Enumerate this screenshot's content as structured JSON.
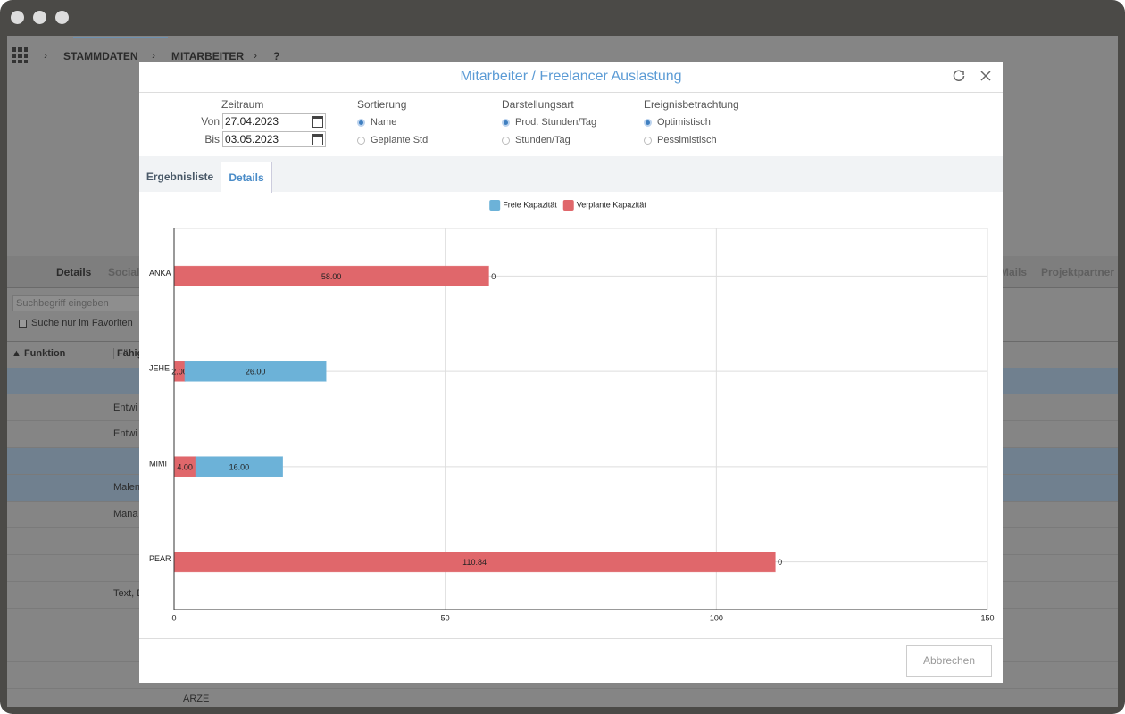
{
  "app": {
    "breadcrumb": [
      "STAMMDATEN",
      "MITARBEITER",
      "?"
    ],
    "tabs": [
      "Details",
      "Social",
      "Mails",
      "Projektpartner"
    ],
    "search_placeholder": "Suchbegriff eingeben",
    "favorites_filter": "Suche nur im Favoriten",
    "columns": [
      "▲ Funktion",
      "Fähigk"
    ],
    "rows": [
      "Entwi",
      "Entwi",
      "Malen",
      "Mana",
      "Text, D"
    ],
    "footer": "ARZE"
  },
  "dialog": {
    "title": "Mitarbeiter / Freelancer Auslastung",
    "zeitraum": {
      "label": "Zeitraum",
      "from_label": "Von",
      "from": "27.04.2023",
      "to_label": "Bis",
      "to": "03.05.2023"
    },
    "radio_groups": [
      {
        "label": "Sortierung",
        "options": [
          "Name",
          "Geplante Std"
        ],
        "selected": 0
      },
      {
        "label": "Darstellungsart",
        "options": [
          "Prod. Stunden/Tag",
          "Stunden/Tag"
        ],
        "selected": 0
      },
      {
        "label": "Ereignisbetrachtung",
        "options": [
          "Optimistisch",
          "Pessimistisch"
        ],
        "selected": 0
      }
    ],
    "tabs": [
      "Ergebnisliste",
      "Details"
    ],
    "active_tab": 1,
    "cancel": "Abbrechen"
  },
  "chart_data": {
    "type": "bar",
    "orientation": "horizontal",
    "stacked": true,
    "categories": [
      "ANKA",
      "JEHE",
      "MIMI",
      "PEAR"
    ],
    "series": [
      {
        "name": "Freie Kapazität",
        "color": "#6cb2d8",
        "values": [
          0,
          26,
          16,
          0
        ],
        "value_labels": [
          "0",
          "26.00",
          "16.00",
          "0"
        ]
      },
      {
        "name": "Verplante Kapazität",
        "color": "#e0676b",
        "values": [
          58,
          2,
          4,
          110.84
        ],
        "value_labels": [
          "58.00",
          "2.00",
          "4.00",
          "110.84"
        ]
      }
    ],
    "xlim": [
      0,
      150
    ],
    "xticks": [
      0,
      50,
      100,
      150
    ],
    "grid": true,
    "legend": "top"
  }
}
